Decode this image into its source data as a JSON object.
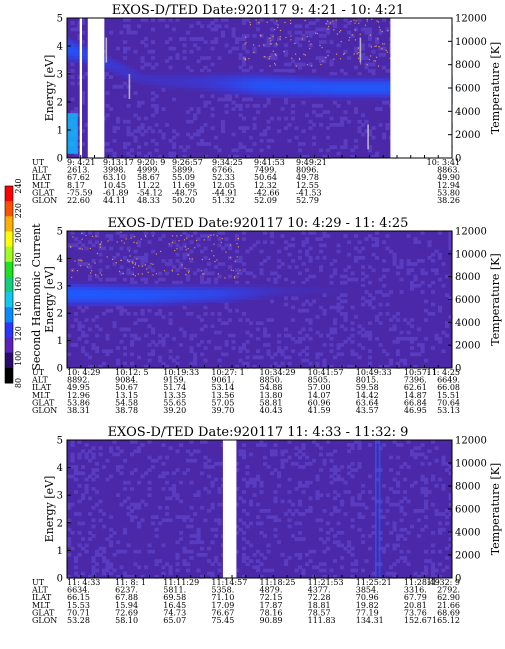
{
  "colors": {
    "background": "#4a28a8",
    "noise": "#5a3cc0",
    "band_core": "#1f5aff",
    "band_edge": "#3a3ad8",
    "low_energy": "#12b6ff",
    "sparkle": "#ffb040",
    "gap": "#ffffff",
    "bar_levels": [
      "#000000",
      "#2a0a6a",
      "#5a22b8",
      "#2a36ff",
      "#0a8aff",
      "#10c8f0",
      "#10d080",
      "#20e020",
      "#a0ff20",
      "#ffff00",
      "#ffb000",
      "#ff5000",
      "#ff0000"
    ]
  },
  "colorbar": {
    "label": "Second Harmonic Current",
    "ticks": [
      "80",
      "100",
      "120",
      "140",
      "160",
      "180",
      "200",
      "220",
      "240"
    ]
  },
  "chart_data": [
    {
      "type": "heatmap",
      "title": "EXOS-D/TED   Date:920117  9: 4:21 - 10: 4:21",
      "ylabel": "Energy [eV]",
      "ylim": [
        0,
        5
      ],
      "yticks": [
        "0",
        "1",
        "2",
        "3",
        "4",
        "5"
      ],
      "y2label": "Temperature [K]",
      "y2lim": [
        0,
        12000
      ],
      "y2ticks": [
        "0",
        "2000",
        "4000",
        "6000",
        "8000",
        "10000",
        "12000"
      ],
      "band": [
        {
          "t": 0.0,
          "center": 1.1,
          "width": 1.0,
          "strength": 0.9
        },
        {
          "t": 0.07,
          "center": 1.4,
          "width": 0.8,
          "strength": 0.6
        },
        {
          "t": 0.2,
          "center": 2.2,
          "width": 0.6,
          "strength": 0.35
        },
        {
          "t": 0.35,
          "center": 2.3,
          "width": 0.8,
          "strength": 0.45
        },
        {
          "t": 0.5,
          "center": 2.4,
          "width": 1.0,
          "strength": 0.85
        },
        {
          "t": 0.7,
          "center": 2.5,
          "width": 0.9,
          "strength": 0.9
        },
        {
          "t": 0.84,
          "center": 2.5,
          "width": 0.9,
          "strength": 0.9
        }
      ],
      "gaps": [
        [
          0.033,
          0.039
        ],
        [
          0.054,
          0.097
        ],
        [
          0.84,
          1.0
        ]
      ],
      "streaks": [
        [
          0.071,
          3.4
        ],
        [
          0.1,
          4.3
        ],
        [
          0.16,
          3.0
        ],
        [
          0.76,
          4.3
        ],
        [
          0.78,
          1.2
        ]
      ],
      "rows": [
        {
          "label": "UT",
          "values": [
            "9: 4:21",
            "9:13:17",
            "9:20: 9",
            "9:26:57",
            "9:34:25",
            "9:41:53",
            "9:49:21",
            "10: 3:41"
          ]
        },
        {
          "label": "ALT",
          "values": [
            "2613.",
            "3998.",
            "4999.",
            "5899.",
            "6766.",
            "7499.",
            "8096.",
            "8863."
          ]
        },
        {
          "label": "ILAT",
          "values": [
            "67.62",
            "63.10",
            "58.67",
            "55.09",
            "52.33",
            "50.64",
            "49.78",
            "49.90"
          ]
        },
        {
          "label": "MLT",
          "values": [
            "8.17",
            "10.45",
            "11.22",
            "11.69",
            "12.05",
            "12.32",
            "12.55",
            "12.94"
          ]
        },
        {
          "label": "GLAT",
          "values": [
            "-75.59",
            "-61.89",
            "-54.12",
            "-48.75",
            "-44.91",
            "-42.66",
            "-41.53",
            "53.80"
          ]
        },
        {
          "label": "GLON",
          "values": [
            "22.60",
            "44.11",
            "48.33",
            "50.20",
            "51.32",
            "52.09",
            "52.79",
            "38.26"
          ]
        }
      ]
    },
    {
      "type": "heatmap",
      "title": "EXOS-D/TED   Date:920117  10: 4:29 - 11: 4:25",
      "ylabel": "Energy [eV]",
      "ylim": [
        0,
        5
      ],
      "yticks": [
        "0",
        "1",
        "2",
        "3",
        "4",
        "5"
      ],
      "y2label": "Temperature [K]",
      "y2lim": [
        0,
        12000
      ],
      "y2ticks": [
        "0",
        "2000",
        "4000",
        "6000",
        "8000",
        "10000",
        "12000"
      ],
      "band": [
        {
          "t": 0.0,
          "center": 2.3,
          "width": 1.0,
          "strength": 0.95
        },
        {
          "t": 0.2,
          "center": 2.35,
          "width": 0.9,
          "strength": 0.9
        },
        {
          "t": 0.4,
          "center": 2.3,
          "width": 0.8,
          "strength": 0.7
        },
        {
          "t": 0.55,
          "center": 2.2,
          "width": 0.6,
          "strength": 0.3
        },
        {
          "t": 0.8,
          "center": 2.1,
          "width": 0.4,
          "strength": 0.1
        },
        {
          "t": 1.0,
          "center": 2.0,
          "width": 0.3,
          "strength": 0.05
        }
      ],
      "gaps": [],
      "streaks": [],
      "rows": [
        {
          "label": "UT",
          "values": [
            "10: 4:29",
            "10:12: 5",
            "10:19:33",
            "10:27: 1",
            "10:34:29",
            "10:41:57",
            "10:49:33",
            "10:57: 1",
            "11: 4:25"
          ]
        },
        {
          "label": "ALT",
          "values": [
            "8892.",
            "9084.",
            "9159.",
            "9061.",
            "8850.",
            "8505.",
            "8015.",
            "7396.",
            "6649."
          ]
        },
        {
          "label": "ILAT",
          "values": [
            "49.95",
            "50.67",
            "51.74",
            "53.14",
            "54.88",
            "57.00",
            "59.58",
            "62.61",
            "66.08"
          ]
        },
        {
          "label": "MLT",
          "values": [
            "12.96",
            "13.15",
            "13.35",
            "13.56",
            "13.80",
            "14.07",
            "14.42",
            "14.87",
            "15.51"
          ]
        },
        {
          "label": "GLAT",
          "values": [
            "53.86",
            "54.58",
            "55.65",
            "57.05",
            "58.81",
            "60.96",
            "63.64",
            "66.84",
            "70.64"
          ]
        },
        {
          "label": "GLON",
          "values": [
            "38.31",
            "38.78",
            "39.20",
            "39.70",
            "40.43",
            "41.59",
            "43.57",
            "46.95",
            "53.13"
          ]
        }
      ]
    },
    {
      "type": "heatmap",
      "title": "EXOS-D/TED   Date:920117  11: 4:33 - 11:32: 9",
      "ylabel": "Energy [eV]",
      "ylim": [
        0,
        5
      ],
      "yticks": [
        "0",
        "1",
        "2",
        "3",
        "4",
        "5"
      ],
      "y2label": "Temperature [K]",
      "y2lim": [
        0,
        12000
      ],
      "y2ticks": [
        "0",
        "2000",
        "4000",
        "6000",
        "8000",
        "10000",
        "12000"
      ],
      "band": [],
      "gaps": [
        [
          0.405,
          0.44
        ]
      ],
      "streaks": [
        [
          0.8,
          5.0
        ],
        [
          0.81,
          5.0
        ]
      ],
      "rows": [
        {
          "label": "UT",
          "values": [
            "11: 4:33",
            "11: 8: 1",
            "11:11:29",
            "11:14:57",
            "11:18:25",
            "11:21:53",
            "11:25:21",
            "11:28:49",
            "11:32: 9"
          ]
        },
        {
          "label": "ALT",
          "values": [
            "6634.",
            "6237.",
            "5811.",
            "5358.",
            "4879.",
            "4377.",
            "3854.",
            "3316.",
            "2792."
          ]
        },
        {
          "label": "ILAT",
          "values": [
            "66.15",
            "67.88",
            "69.58",
            "71.10",
            "72.15",
            "72.28",
            "70.96",
            "67.79",
            "62.90"
          ]
        },
        {
          "label": "MLT",
          "values": [
            "15.53",
            "15.94",
            "16.45",
            "17.09",
            "17.87",
            "18.81",
            "19.82",
            "20.81",
            "21.66"
          ]
        },
        {
          "label": "GLAT",
          "values": [
            "70.71",
            "72.69",
            "74.73",
            "76.67",
            "78.16",
            "78.57",
            "77.19",
            "73.76",
            "68.69"
          ]
        },
        {
          "label": "GLON",
          "values": [
            "53.28",
            "58.10",
            "65.07",
            "75.45",
            "90.89",
            "111.83",
            "134.31",
            "152.67",
            "165.12"
          ]
        }
      ]
    }
  ]
}
